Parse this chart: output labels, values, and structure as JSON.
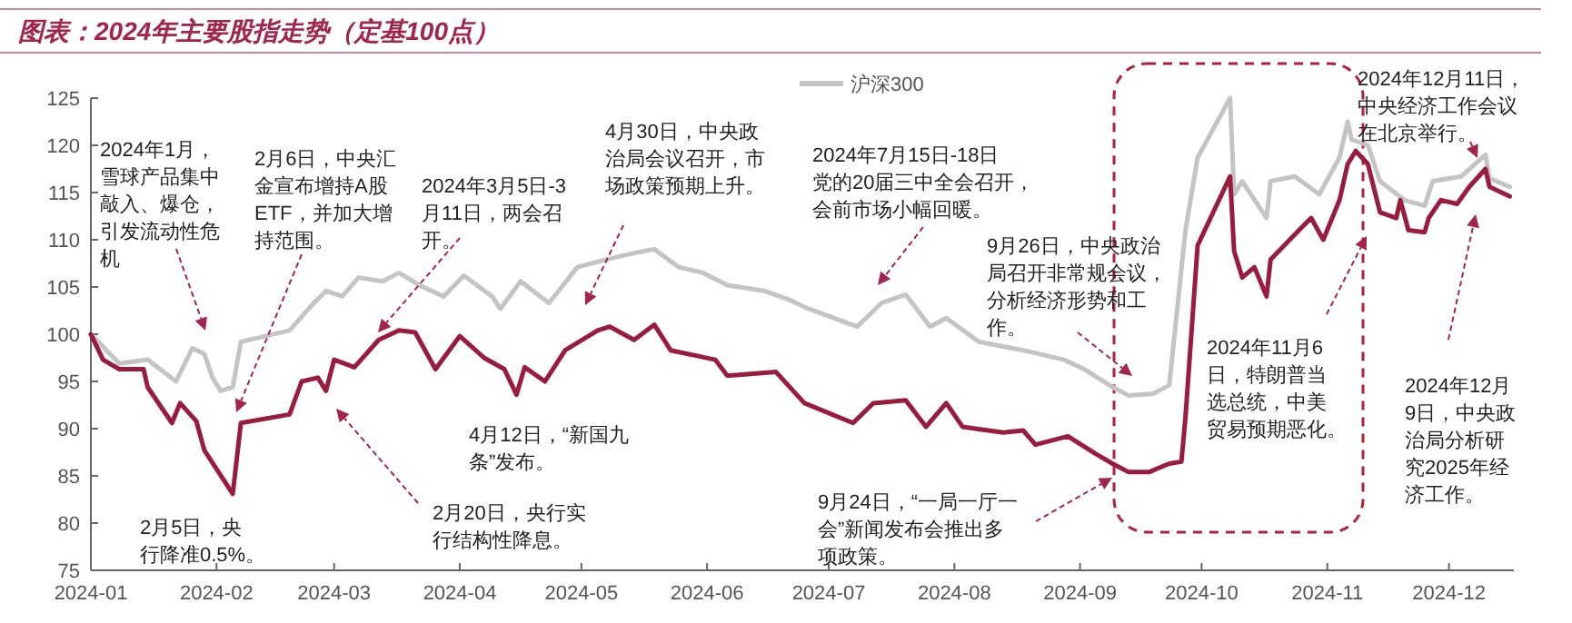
{
  "chart_data": {
    "type": "line",
    "title": "图表：2024年主要股指走势（定基100点）",
    "xlim": [
      "2024-01-01",
      "2024-12-17"
    ],
    "ylim": [
      75,
      125
    ],
    "xticks": [
      "2024-01",
      "2024-02",
      "2024-03",
      "2024-04",
      "2024-05",
      "2024-06",
      "2024-07",
      "2024-08",
      "2024-09",
      "2024-10",
      "2024-11",
      "2024-12"
    ],
    "yticks": [
      75,
      80,
      85,
      90,
      95,
      100,
      105,
      110,
      115,
      120,
      125
    ],
    "legend": "top",
    "line_style": "solid",
    "marker": "none",
    "series": [
      {
        "color": "#9b1b3f",
        "x": [
          "2024-01-01",
          "2024-01-04",
          "2024-01-08",
          "2024-01-14",
          "2024-01-15",
          "2024-01-21",
          "2024-01-23",
          "2024-01-27",
          "2024-01-29",
          "2024-02-05",
          "2024-02-07",
          "2024-02-19",
          "2024-02-22",
          "2024-02-26",
          "2024-02-28",
          "2024-03-01",
          "2024-03-06",
          "2024-03-12",
          "2024-03-17",
          "2024-03-21",
          "2024-03-26",
          "2024-04-01",
          "2024-04-07",
          "2024-04-12",
          "2024-04-15",
          "2024-04-17",
          "2024-04-22",
          "2024-04-27",
          "2024-05-05",
          "2024-05-08",
          "2024-05-14",
          "2024-05-19",
          "2024-05-23",
          "2024-06-03",
          "2024-06-06",
          "2024-06-18",
          "2024-06-25",
          "2024-07-07",
          "2024-07-12",
          "2024-07-20",
          "2024-07-25",
          "2024-07-30",
          "2024-08-03",
          "2024-08-13",
          "2024-08-18",
          "2024-08-21",
          "2024-08-29",
          "2024-09-05",
          "2024-09-09",
          "2024-09-13",
          "2024-09-18",
          "2024-09-23",
          "2024-09-26",
          "2024-09-27",
          "2024-09-30",
          "2024-10-08",
          "2024-10-09",
          "2024-10-11",
          "2024-10-14",
          "2024-10-17",
          "2024-10-18",
          "2024-10-25",
          "2024-10-28",
          "2024-10-31",
          "2024-11-04",
          "2024-11-06",
          "2024-11-08",
          "2024-11-11",
          "2024-11-14",
          "2024-11-18",
          "2024-11-19",
          "2024-11-21",
          "2024-11-25",
          "2024-11-26",
          "2024-11-29",
          "2024-12-03",
          "2024-12-06",
          "2024-12-10",
          "2024-12-11",
          "2024-12-16"
        ],
        "values": [
          100,
          97.3,
          96.3,
          96.3,
          94.4,
          90.6,
          92.7,
          90.8,
          87.7,
          83.1,
          90.6,
          91.5,
          95,
          95.4,
          94,
          97.3,
          96.5,
          99.4,
          100.4,
          100.2,
          96.3,
          99.8,
          97.5,
          96.3,
          93.6,
          96.5,
          95,
          98.3,
          100.4,
          100.8,
          99.4,
          101,
          98.3,
          97.3,
          95.6,
          96,
          92.7,
          90.6,
          92.7,
          93,
          90.2,
          92.7,
          90.2,
          89.6,
          89.8,
          88.3,
          89.2,
          87.3,
          86.3,
          85.4,
          85.4,
          86.3,
          86.5,
          91.2,
          109.4,
          116.7,
          108.8,
          106,
          107.1,
          104,
          107.9,
          111,
          112.3,
          110,
          114.2,
          118,
          119.4,
          118,
          112.9,
          112.3,
          114.2,
          111,
          110.8,
          112.3,
          114.2,
          113.8,
          115.6,
          117.5,
          115.6,
          114.6
        ]
      },
      {
        "name": "沪深300",
        "color": "#c4c4c4",
        "x": [
          "2024-01-01",
          "2024-01-08",
          "2024-01-15",
          "2024-01-22",
          "2024-01-26",
          "2024-01-29",
          "2024-01-31",
          "2024-02-02",
          "2024-02-05",
          "2024-02-07",
          "2024-02-19",
          "2024-02-25",
          "2024-02-28",
          "2024-03-03",
          "2024-03-07",
          "2024-03-13",
          "2024-03-17",
          "2024-03-22",
          "2024-03-28",
          "2024-04-02",
          "2024-04-09",
          "2024-04-11",
          "2024-04-16",
          "2024-04-23",
          "2024-04-30",
          "2024-05-07",
          "2024-05-13",
          "2024-05-19",
          "2024-05-25",
          "2024-05-31",
          "2024-06-06",
          "2024-06-15",
          "2024-06-21",
          "2024-06-26",
          "2024-07-08",
          "2024-07-14",
          "2024-07-20",
          "2024-07-26",
          "2024-07-30",
          "2024-08-07",
          "2024-08-18",
          "2024-08-28",
          "2024-09-02",
          "2024-09-09",
          "2024-09-13",
          "2024-09-19",
          "2024-09-23",
          "2024-09-27",
          "2024-09-30",
          "2024-10-08",
          "2024-10-09",
          "2024-10-11",
          "2024-10-17",
          "2024-10-18",
          "2024-10-24",
          "2024-10-30",
          "2024-11-04",
          "2024-11-06",
          "2024-11-07",
          "2024-11-11",
          "2024-11-14",
          "2024-11-20",
          "2024-11-25",
          "2024-11-27",
          "2024-12-04",
          "2024-12-10",
          "2024-12-11",
          "2024-12-16"
        ],
        "values": [
          100,
          96.9,
          97.3,
          95,
          98.5,
          97.9,
          95.4,
          94,
          94.4,
          99.2,
          100.4,
          103.3,
          104.6,
          104,
          106,
          105.6,
          106.5,
          105.2,
          104,
          106.2,
          104,
          102.7,
          105.6,
          103.3,
          107.1,
          107.9,
          108.5,
          109,
          107.1,
          106.5,
          105.2,
          104.6,
          103.7,
          102.7,
          100.8,
          103.3,
          104.2,
          100.8,
          101.7,
          99.2,
          98.3,
          97.3,
          96.3,
          94.4,
          93.5,
          93.7,
          94.6,
          111,
          118.7,
          125,
          114.8,
          116.2,
          112.3,
          116.2,
          116.7,
          114.8,
          118.7,
          122.5,
          120.6,
          120,
          116.2,
          114.2,
          113.6,
          116.2,
          116.7,
          119,
          116.5,
          115.6
        ]
      }
    ],
    "annotations": [
      "2024年1月，雪球产品集中敲入、爆仓，引发流动性危机",
      "2月6日，中央汇金宣布增持A股ETF，并加大增持范围。",
      "2024年3月5日-3月11日，两会召开。",
      "4月30日，中央政治局会议召开，市场政策预期上升。",
      "2024年7月15日-18日党的20届三中全会召开，会前市场小幅回暖。",
      "9月26日，中央政治局召开非常规会议，分析经济形势和工作。",
      "2024年11月6日，特朗普当选总统，中美贸易预期恶化。",
      "2024年12月11日，中央经济工作会议在北京举行。",
      "2024年12月9日，中央政治局分析研究2025年经济工作。",
      "9月24日，“一局一厅一会”新闻发布会推出多项政策。",
      "4月12日，“新国九条”发布。",
      "2月20日，央行实行结构性降息。",
      "2月5日，央行降准0.5%。"
    ]
  }
}
